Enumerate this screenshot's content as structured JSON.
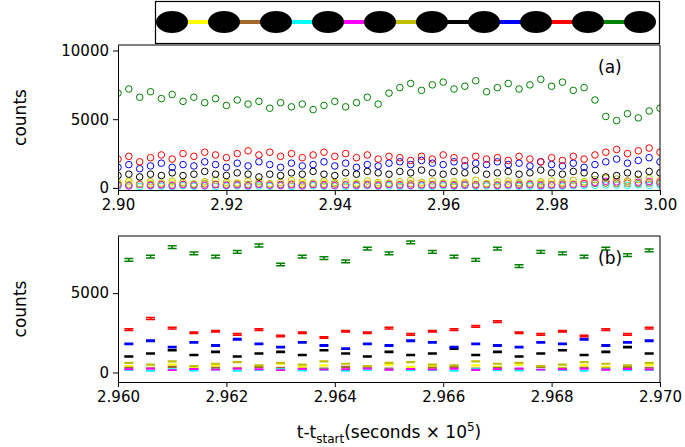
{
  "chart_data": [
    {
      "type": "scatter",
      "marker": "circle",
      "ylabel": "counts",
      "annotation": "(a)",
      "xlim": [
        2.9,
        3.0
      ],
      "xticks": [
        {
          "value": 2.9,
          "label": "2.90"
        },
        2.92,
        2.94,
        2.96,
        2.98,
        {
          "value": 3.0,
          "label": "3.00"
        }
      ],
      "ylim": [
        -150,
        10400
      ],
      "yticks": [
        0,
        5000,
        10000
      ],
      "x": [
        2.9,
        2.902,
        2.904,
        2.906,
        2.908,
        2.91,
        2.912,
        2.914,
        2.916,
        2.918,
        2.92,
        2.922,
        2.924,
        2.926,
        2.928,
        2.93,
        2.932,
        2.934,
        2.936,
        2.938,
        2.94,
        2.942,
        2.944,
        2.946,
        2.948,
        2.95,
        2.952,
        2.954,
        2.956,
        2.958,
        2.96,
        2.962,
        2.964,
        2.966,
        2.968,
        2.97,
        2.972,
        2.974,
        2.976,
        2.978,
        2.98,
        2.982,
        2.984,
        2.986,
        2.988,
        2.99,
        2.992,
        2.994,
        2.996,
        2.998,
        3.0
      ],
      "series": [
        {
          "color": "#ffff00",
          "values": [
            300,
            350,
            250,
            320,
            280,
            370,
            300,
            260,
            340,
            310,
            290,
            360,
            270,
            330,
            300,
            250,
            350,
            310,
            280,
            340,
            300,
            270,
            360,
            320,
            290,
            330,
            280,
            350,
            310,
            270,
            340,
            300,
            360,
            290,
            320,
            260,
            340,
            300,
            280,
            350,
            310,
            290,
            330,
            380,
            420,
            450,
            400,
            430,
            390,
            440,
            410
          ]
        },
        {
          "color": "#a5682a",
          "values": [
            250,
            220,
            280,
            240,
            260,
            210,
            270,
            230,
            290,
            250,
            220,
            260,
            240,
            280,
            210,
            250,
            270,
            230,
            260,
            240,
            280,
            220,
            250,
            270,
            230,
            260,
            240,
            290,
            220,
            250,
            270,
            230,
            260,
            240,
            280,
            220,
            250,
            270,
            230,
            260,
            240,
            280,
            250,
            300,
            330,
            350,
            320,
            340,
            310,
            360,
            330
          ]
        },
        {
          "color": "#00ffff",
          "values": [
            120,
            150,
            100,
            140,
            130,
            110,
            160,
            120,
            140,
            100,
            130,
            150,
            110,
            140,
            120,
            160,
            100,
            130,
            150,
            120,
            140,
            110,
            130,
            160,
            120,
            150,
            100,
            140,
            130,
            110,
            150,
            120,
            160,
            130,
            140,
            110,
            150,
            120,
            130,
            100,
            140,
            130,
            150,
            170,
            190,
            210,
            200,
            180,
            220,
            190,
            210
          ]
        },
        {
          "color": "#ff00ff",
          "values": [
            200,
            150,
            250,
            180,
            220,
            160,
            240,
            200,
            170,
            230,
            190,
            210,
            160,
            250,
            200,
            180,
            220,
            150,
            240,
            200,
            170,
            230,
            190,
            210,
            160,
            250,
            200,
            180,
            220,
            190,
            240,
            170,
            210,
            200,
            230,
            180,
            220,
            190,
            250,
            170,
            210,
            200,
            240,
            300,
            400,
            480,
            450,
            500,
            420,
            470,
            430
          ]
        },
        {
          "color": "#bfbf00",
          "values": [
            400,
            500,
            300,
            450,
            350,
            500,
            400,
            300,
            450,
            550,
            400,
            350,
            500,
            450,
            300,
            400,
            550,
            450,
            350,
            500,
            400,
            450,
            300,
            500,
            400,
            350,
            450,
            550,
            400,
            500,
            350,
            450,
            400,
            550,
            300,
            450,
            500,
            400,
            350,
            450,
            500,
            400,
            550,
            450,
            600,
            700,
            650,
            500,
            600,
            700,
            550
          ]
        },
        {
          "color": "#000000",
          "values": [
            900,
            1000,
            800,
            1000,
            900,
            1100,
            900,
            1000,
            1200,
            1000,
            900,
            1100,
            1000,
            800,
            1000,
            900,
            1100,
            1000,
            1200,
            1000,
            900,
            1100,
            1000,
            1200,
            1100,
            1000,
            1200,
            1100,
            1300,
            1100,
            1000,
            1200,
            1100,
            1300,
            1000,
            1100,
            1200,
            1000,
            1100,
            1300,
            1100,
            1000,
            1200,
            1100,
            900,
            800,
            900,
            1100,
            1000,
            1200,
            1100
          ]
        },
        {
          "color": "#0000ff",
          "values": [
            1500,
            1700,
            1400,
            1600,
            1800,
            1500,
            1700,
            1600,
            1900,
            1700,
            1500,
            1800,
            1600,
            1900,
            1700,
            1500,
            1800,
            1600,
            1700,
            1900,
            1600,
            1800,
            1500,
            1700,
            1600,
            1800,
            1900,
            1700,
            2000,
            1800,
            1700,
            1900,
            1600,
            1800,
            1700,
            1900,
            1700,
            1800,
            1600,
            1900,
            1700,
            1600,
            1800,
            1500,
            1700,
            1900,
            2100,
            1800,
            2000,
            2200,
            1900
          ]
        },
        {
          "color": "#ff0000",
          "values": [
            2100,
            2300,
            1900,
            2200,
            2400,
            2100,
            2500,
            2300,
            2600,
            2400,
            2200,
            2500,
            2700,
            2400,
            2600,
            2300,
            2500,
            2200,
            2400,
            2600,
            2300,
            2500,
            2200,
            2400,
            2100,
            2300,
            2200,
            2000,
            2300,
            2100,
            2400,
            2200,
            2000,
            2300,
            2100,
            2200,
            2000,
            2300,
            2100,
            1900,
            2200,
            2000,
            2300,
            2100,
            2400,
            2600,
            2800,
            2500,
            2700,
            2900,
            2600
          ]
        },
        {
          "color": "#008000",
          "values": [
            6900,
            7200,
            6600,
            7000,
            6500,
            6800,
            6300,
            6600,
            6200,
            6500,
            6000,
            6400,
            6100,
            6300,
            5800,
            6200,
            5900,
            6100,
            5700,
            6000,
            6300,
            5900,
            6200,
            6600,
            6100,
            6900,
            7300,
            7600,
            7100,
            7500,
            7700,
            7200,
            7400,
            7800,
            7000,
            7300,
            7600,
            7200,
            7500,
            7900,
            7400,
            7700,
            7100,
            7300,
            6400,
            5200,
            4900,
            5400,
            5100,
            5600,
            5800
          ]
        }
      ]
    },
    {
      "type": "errorbar",
      "marker": "none",
      "ylabel": "counts",
      "annotation": "(b)",
      "xlabel": [
        "t-t",
        "start",
        "(seconds × 10",
        "5",
        ")"
      ],
      "xlim": [
        2.96,
        2.97
      ],
      "xticks": [
        {
          "value": 2.96,
          "label": "2.960"
        },
        2.962,
        2.964,
        2.966,
        2.968,
        {
          "value": 2.97,
          "label": "2.970"
        }
      ],
      "ylim": [
        -600,
        8600
      ],
      "yticks": [
        0,
        5000
      ],
      "x": [
        2.9602,
        2.9606,
        2.961,
        2.9614,
        2.9618,
        2.9622,
        2.9626,
        2.963,
        2.9634,
        2.9638,
        2.9642,
        2.9646,
        2.965,
        2.9654,
        2.9658,
        2.9662,
        2.9666,
        2.967,
        2.9674,
        2.9678,
        2.9682,
        2.9686,
        2.969,
        2.9694,
        2.9698
      ],
      "series": [
        {
          "color": "#ffff00",
          "values": [
            400,
            300,
            500,
            350,
            450,
            300,
            400,
            550,
            350,
            450,
            300,
            400,
            500,
            350,
            400,
            300,
            450,
            350,
            500,
            400,
            300,
            450,
            350,
            400,
            500
          ],
          "errors": [
            20,
            17,
            22,
            19,
            21,
            17,
            20,
            23,
            19,
            21,
            17,
            20,
            22,
            19,
            20,
            17,
            21,
            19,
            22,
            20,
            17,
            21,
            19,
            20,
            22
          ]
        },
        {
          "color": "#a5682a",
          "values": [
            300,
            250,
            350,
            200,
            300,
            250,
            350,
            300,
            200,
            250,
            350,
            300,
            250,
            200,
            300,
            350,
            250,
            300,
            200,
            350,
            250,
            300,
            250,
            350,
            300
          ],
          "errors": [
            17,
            16,
            19,
            14,
            17,
            16,
            19,
            17,
            14,
            16,
            19,
            17,
            16,
            14,
            17,
            19,
            16,
            17,
            14,
            19,
            16,
            17,
            16,
            19,
            17
          ]
        },
        {
          "color": "#00ffff",
          "values": [
            150,
            100,
            200,
            120,
            180,
            100,
            150,
            200,
            120,
            170,
            100,
            150,
            180,
            130,
            160,
            100,
            200,
            140,
            120,
            170,
            150,
            110,
            190,
            140,
            160
          ],
          "errors": [
            12,
            10,
            14,
            11,
            13,
            10,
            12,
            14,
            11,
            13,
            10,
            12,
            13,
            11,
            13,
            10,
            14,
            12,
            11,
            13,
            12,
            10,
            14,
            12,
            13
          ]
        },
        {
          "color": "#ff00ff",
          "values": [
            200,
            250,
            150,
            220,
            180,
            250,
            200,
            150,
            230,
            180,
            200,
            250,
            170,
            220,
            190,
            240,
            160,
            210,
            250,
            180,
            200,
            230,
            170,
            220,
            190
          ],
          "errors": [
            14,
            16,
            12,
            15,
            13,
            16,
            14,
            12,
            15,
            13,
            14,
            16,
            13,
            15,
            14,
            15,
            13,
            14,
            16,
            13,
            14,
            15,
            13,
            15,
            14
          ]
        },
        {
          "color": "#bfbf00",
          "values": [
            600,
            500,
            700,
            400,
            550,
            650,
            450,
            600,
            500,
            700,
            550,
            400,
            600,
            650,
            500,
            450,
            700,
            550,
            600,
            400,
            500,
            650,
            550,
            450,
            600
          ],
          "errors": [
            24,
            22,
            26,
            20,
            23,
            25,
            21,
            24,
            22,
            26,
            23,
            20,
            24,
            25,
            22,
            21,
            26,
            23,
            24,
            20,
            22,
            25,
            23,
            21,
            24
          ]
        },
        {
          "color": "#000000",
          "values": [
            1000,
            1200,
            1400,
            1100,
            1300,
            1000,
            1200,
            1300,
            1100,
            1400,
            1200,
            1000,
            1300,
            1100,
            1200,
            1500,
            1100,
            1300,
            1000,
            1200,
            1400,
            1100,
            1300,
            1600,
            1200
          ],
          "errors": [
            32,
            35,
            37,
            33,
            36,
            32,
            35,
            36,
            33,
            37,
            35,
            32,
            36,
            33,
            35,
            39,
            33,
            36,
            32,
            35,
            37,
            33,
            36,
            40,
            35
          ]
        },
        {
          "color": "#0000ff",
          "values": [
            1800,
            2000,
            1600,
            1900,
            1700,
            2100,
            1800,
            1600,
            1900,
            1700,
            1500,
            1800,
            1700,
            2000,
            1900,
            1600,
            1800,
            1700,
            1600,
            1900,
            1800,
            2100,
            1700,
            1900,
            2000
          ],
          "errors": [
            42,
            45,
            40,
            44,
            41,
            46,
            42,
            40,
            44,
            41,
            39,
            42,
            41,
            45,
            44,
            40,
            42,
            41,
            40,
            44,
            42,
            46,
            41,
            44,
            45
          ]
        },
        {
          "color": "#ff0000",
          "values": [
            2700,
            3400,
            2800,
            2500,
            2600,
            2400,
            2700,
            2300,
            2500,
            2200,
            2600,
            2500,
            2800,
            2400,
            2600,
            2700,
            2900,
            3200,
            2500,
            2400,
            2600,
            2300,
            2700,
            2400,
            2800
          ],
          "errors": [
            52,
            58,
            53,
            50,
            51,
            49,
            52,
            48,
            50,
            47,
            51,
            50,
            53,
            49,
            51,
            52,
            54,
            57,
            50,
            49,
            51,
            48,
            52,
            49,
            53
          ]
        },
        {
          "color": "#008000",
          "values": [
            7100,
            7300,
            7900,
            7500,
            7300,
            7600,
            8000,
            6800,
            7300,
            7200,
            7000,
            7800,
            7500,
            8200,
            7600,
            7300,
            7100,
            7800,
            6700,
            7600,
            7500,
            7300,
            7800,
            7400,
            7700
          ],
          "errors": [
            84,
            85,
            89,
            87,
            85,
            87,
            89,
            82,
            85,
            85,
            84,
            88,
            87,
            91,
            87,
            85,
            84,
            88,
            82,
            87,
            87,
            85,
            88,
            86,
            88
          ]
        }
      ]
    }
  ]
}
